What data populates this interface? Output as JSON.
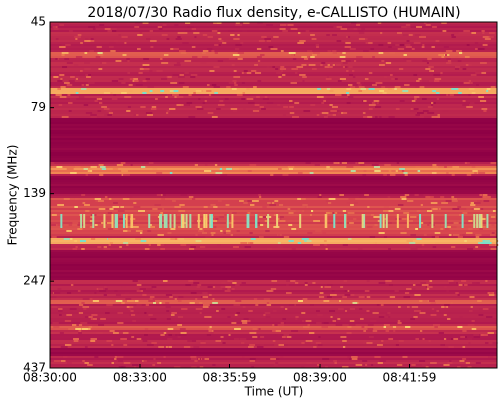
{
  "chart_data": {
    "type": "spectrogram",
    "title": "2018/07/30  Radio flux density, e-CALLISTO (HUMAIN)",
    "xlabel": "Time (UT)",
    "ylabel": "Frequency (MHz)",
    "xlim": [
      30600,
      31494
    ],
    "xticks": [
      {
        "value": 30600,
        "label": "08:30:00"
      },
      {
        "value": 30780,
        "label": "08:33:00"
      },
      {
        "value": 30959,
        "label": "08:35:59"
      },
      {
        "value": 31140,
        "label": "08:39:00"
      },
      {
        "value": 31319,
        "label": "08:41:59"
      }
    ],
    "ylim": [
      45,
      437
    ],
    "ylog": true,
    "yinverted": true,
    "yticks": [
      45,
      79,
      139,
      247,
      437
    ]
  }
}
